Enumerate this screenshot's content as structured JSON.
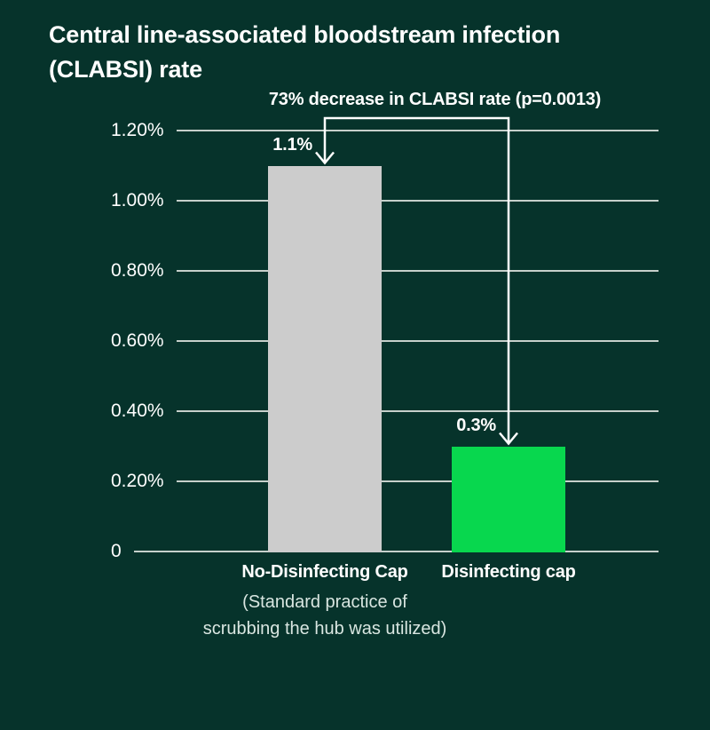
{
  "theme": {
    "background": "#06332B",
    "text_color": "#FFFFFF",
    "muted_text_color": "#D9E6E1",
    "gridline_color": "#C6D0CB",
    "bar_gray": "#CCCCCC",
    "accent_green": "#08D74E",
    "arrow_color": "#FFFFFF"
  },
  "chart_data": {
    "type": "bar",
    "title": "Central line-associated bloodstream infection (CLABSI) rate",
    "title_lines": [
      "Central line-associated bloodstream infection",
      "(CLABSI) rate"
    ],
    "annotation": "73% decrease in CLABSI rate (p=0.0013)",
    "categories": [
      "No-Disinfecting Cap",
      "Disinfecting cap"
    ],
    "category_sublabel_lines": [
      "(Standard practice of",
      "scrubbing the hub was utilized)"
    ],
    "values": [
      1.1,
      0.3
    ],
    "value_labels": [
      "1.1%",
      "0.3%"
    ],
    "series_colors": [
      "#CCCCCC",
      "#08D74E"
    ],
    "ylim": [
      0,
      1.2
    ],
    "yticks": [
      {
        "value": 0,
        "label": "0"
      },
      {
        "value": 0.2,
        "label": "0.20%"
      },
      {
        "value": 0.4,
        "label": "0.40%"
      },
      {
        "value": 0.6,
        "label": "0.60%"
      },
      {
        "value": 0.8,
        "label": "0.80%"
      },
      {
        "value": 1.0,
        "label": "1.00%"
      },
      {
        "value": 1.2,
        "label": "1.20%"
      }
    ],
    "grid": true,
    "legend_position": "none"
  }
}
